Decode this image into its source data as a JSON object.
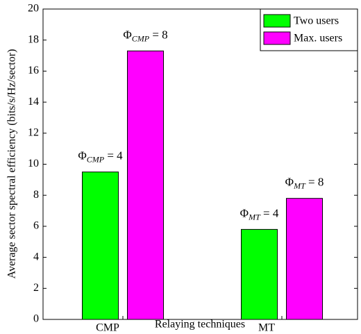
{
  "chart_data": {
    "type": "bar",
    "xlabel": "Relaying techniques",
    "ylabel": "Average sector spectral efficiency (bits/s/Hz/sector)",
    "categories": [
      "CMP",
      "MT"
    ],
    "series": [
      {
        "name": "Two users",
        "color": "#00ff00",
        "values": [
          9.5,
          5.8
        ]
      },
      {
        "name": "Max. users",
        "color": "#ff00ff",
        "values": [
          17.3,
          7.8
        ]
      }
    ],
    "annotations": [
      [
        {
          "base": "Φ",
          "sub": "CMP",
          "rest": " = 4"
        },
        {
          "base": "Φ",
          "sub": "MT",
          "rest": " = 4"
        }
      ],
      [
        {
          "base": "Φ",
          "sub": "CMP",
          "rest": " = 8"
        },
        {
          "base": "Φ",
          "sub": "MT",
          "rest": " = 8"
        }
      ]
    ],
    "ylim": [
      0,
      20
    ],
    "yticks": [
      0,
      2,
      4,
      6,
      8,
      10,
      12,
      14,
      16,
      18,
      20
    ],
    "legend": "upper right"
  }
}
